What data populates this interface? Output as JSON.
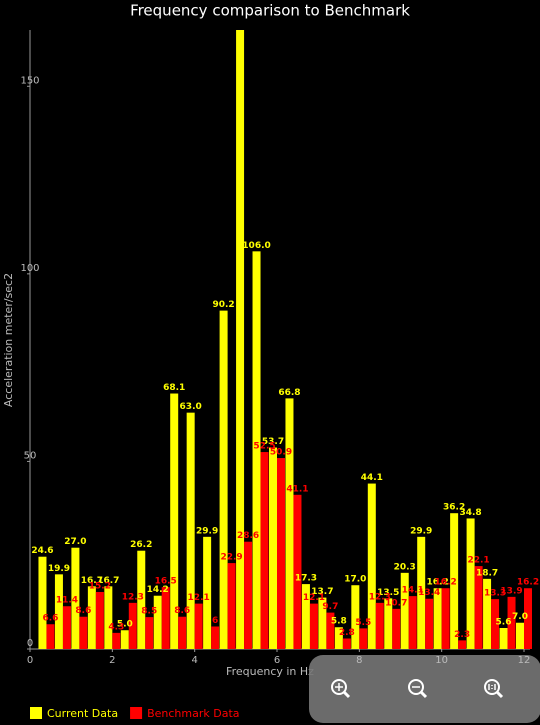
{
  "chart_data": {
    "type": "bar",
    "title": "Frequency comparison to Benchmark",
    "x_label": "Frequency in Hz",
    "y_label": "Acceleration meter/sec2",
    "x": [
      0.4,
      0.8,
      1.2,
      1.6,
      2,
      2.4,
      2.8,
      3.2,
      3.6,
      4,
      4.4,
      4.8,
      5.2,
      5.6,
      6,
      6.4,
      6.8,
      7.2,
      7.6,
      8,
      8.4,
      8.8,
      9.2,
      9.6,
      10,
      10.4,
      10.8,
      11.2,
      11.6,
      12
    ],
    "series": [
      {
        "name": "Current Data",
        "color": "#ffff00",
        "values": [
          24.6,
          19.9,
          27.0,
          16.7,
          16.7,
          5.0,
          26.2,
          14.2,
          68.1,
          63.0,
          29.9,
          90.2,
          168,
          106.0,
          53.7,
          66.8,
          17.3,
          13.7,
          5.8,
          17.0,
          44.1,
          13.5,
          20.3,
          29.9,
          16.2,
          36.2,
          34.8,
          18.7,
          5.6,
          7.0
        ],
        "value_labels": [
          "24.6",
          "19.9",
          "27.0",
          "16.7",
          "16.7",
          "5.0",
          "26.2",
          "14.2",
          "68.1",
          "63.0",
          "29.9",
          "90.2",
          null,
          "106.0",
          "53.7",
          "66.8",
          "17.3",
          "13.7",
          "5.8",
          "17.0",
          "44.1",
          "13.5",
          "20.3",
          "29.9",
          "16.2",
          "36.2",
          "34.8",
          "18.7",
          "5.6",
          "7.0"
        ]
      },
      {
        "name": "Benchmark Data",
        "color": "#ff0000",
        "values": [
          6.6,
          11.4,
          8.6,
          15.2,
          4.3,
          12.3,
          8.5,
          16.5,
          8.6,
          12.1,
          6.0,
          22.9,
          28.6,
          52.5,
          50.9,
          41.1,
          12.1,
          9.7,
          2.8,
          5.5,
          12.3,
          10.7,
          14.1,
          13.4,
          16.2,
          2.3,
          22.1,
          13.3,
          13.9,
          16.2
        ]
      }
    ],
    "xlim": [
      0,
      12
    ],
    "xticks": [
      0,
      2,
      4,
      6,
      8,
      10,
      12
    ],
    "ylim": [
      0,
      165
    ],
    "yticks": [
      0,
      50,
      100,
      150
    ],
    "legend": "bottom-left"
  }
}
